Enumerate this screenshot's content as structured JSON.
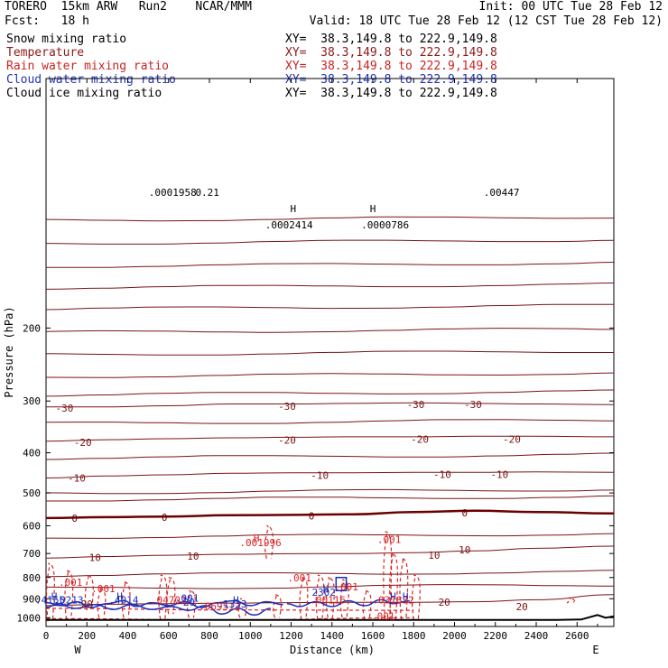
{
  "header": {
    "title": "TORERO  15km ARW   Run2    NCAR/MMM",
    "init": "Init: 00 UTC Tue 28 Feb 12",
    "fcst": "Fcst:   18 h",
    "valid": "Valid: 18 UTC Tue 28 Feb 12 (12 CST Tue 28 Feb 12)"
  },
  "legend": [
    {
      "name": "Snow mixing ratio",
      "color": "#000000",
      "xy": "XY=  38.3,149.8 to 222.9,149.8"
    },
    {
      "name": "Temperature",
      "color": "#8b1a1a",
      "xy": "XY=  38.3,149.8 to 222.9,149.8"
    },
    {
      "name": "Rain water mixing ratio",
      "color": "#cc2222",
      "xy": "XY=  38.3,149.8 to 222.9,149.8"
    },
    {
      "name": "Cloud water mixing ratio",
      "color": "#2233bb",
      "xy": "XY=  38.3,149.8 to 222.9,149.8"
    },
    {
      "name": "Cloud ice mixing ratio",
      "color": "#000000",
      "xy": "XY=  38.3,149.8 to 222.9,149.8"
    }
  ],
  "colors": {
    "temperature": "#7a1414",
    "freezing": "#6b0000",
    "rain": "#dd2222",
    "cloud_water": "#1a2dbb",
    "terrain": "#000000"
  },
  "chart_data": {
    "type": "contour",
    "xlabel": "Distance (km)",
    "ylabel": "Pressure (hPa)",
    "xlim": [
      0,
      2780
    ],
    "ylim": [
      1050,
      50
    ],
    "y_scale": "log",
    "x_ticks": [
      0,
      200,
      400,
      600,
      800,
      1000,
      1200,
      1400,
      1600,
      1800,
      2000,
      2200,
      2400,
      2600
    ],
    "y_ticks": [
      200,
      300,
      400,
      500,
      600,
      700,
      800,
      900,
      1000
    ],
    "left_end_label": "W",
    "right_end_label": "E",
    "temperature_contours": [
      {
        "label": "-30",
        "p": [
          310,
          310,
          308,
          305,
          305,
          304,
          303,
          304,
          305,
          306
        ]
      },
      {
        "label": "-20",
        "p": [
          375,
          372,
          370,
          368,
          367,
          366,
          366,
          365,
          365,
          366
        ]
      },
      {
        "label": "-10",
        "p": [
          460,
          455,
          452,
          448,
          447,
          447,
          446,
          446,
          445,
          446
        ]
      },
      {
        "label": "0",
        "p": [
          575,
          572,
          570,
          566,
          565,
          563,
          556,
          552,
          556,
          560
        ]
      },
      {
        "label": "10",
        "p": [
          718,
          712,
          707,
          703,
          701,
          700,
          697,
          690,
          680,
          672
        ]
      },
      {
        "label": "20",
        "p": [
          935,
          928,
          925,
          922,
          920,
          918,
          918,
          915,
          905,
          880
        ]
      }
    ],
    "temperature_contour_x": [
      0,
      300,
      600,
      900,
      1200,
      1500,
      1800,
      2100,
      2400,
      2780
    ],
    "labels": [
      {
        "text": "-30",
        "x": 90,
        "p": 318,
        "series": "temperature"
      },
      {
        "text": "-30",
        "x": 1180,
        "p": 315,
        "series": "temperature"
      },
      {
        "text": "-30",
        "x": 1810,
        "p": 312,
        "series": "temperature"
      },
      {
        "text": "-30",
        "x": 2090,
        "p": 312,
        "series": "temperature"
      },
      {
        "text": "-20",
        "x": 180,
        "p": 385,
        "series": "temperature"
      },
      {
        "text": "-20",
        "x": 1180,
        "p": 380,
        "series": "temperature"
      },
      {
        "text": "-20",
        "x": 1830,
        "p": 378,
        "series": "temperature"
      },
      {
        "text": "-20",
        "x": 2280,
        "p": 378,
        "series": "temperature"
      },
      {
        "text": "-10",
        "x": 150,
        "p": 470,
        "series": "temperature"
      },
      {
        "text": "-10",
        "x": 1340,
        "p": 462,
        "series": "temperature"
      },
      {
        "text": "-10",
        "x": 1940,
        "p": 460,
        "series": "temperature"
      },
      {
        "text": "-10",
        "x": 2220,
        "p": 460,
        "series": "temperature"
      },
      {
        "text": "0",
        "x": 140,
        "p": 587,
        "series": "freezing"
      },
      {
        "text": "0",
        "x": 580,
        "p": 584,
        "series": "freezing"
      },
      {
        "text": "0",
        "x": 1300,
        "p": 579,
        "series": "freezing"
      },
      {
        "text": "0",
        "x": 2050,
        "p": 570,
        "series": "freezing"
      },
      {
        "text": "10",
        "x": 240,
        "p": 730,
        "series": "temperature"
      },
      {
        "text": "10",
        "x": 720,
        "p": 725,
        "series": "temperature"
      },
      {
        "text": "10",
        "x": 1900,
        "p": 720,
        "series": "temperature"
      },
      {
        "text": "10",
        "x": 2050,
        "p": 700,
        "series": "temperature"
      },
      {
        "text": "20",
        "x": 200,
        "p": 944,
        "series": "temperature"
      },
      {
        "text": "20",
        "x": 1950,
        "p": 935,
        "series": "temperature"
      },
      {
        "text": "20",
        "x": 2330,
        "p": 960,
        "series": "temperature"
      },
      {
        "text": ".001",
        "x": 120,
        "p": 838,
        "series": "rain"
      },
      {
        "text": ".001",
        "x": 280,
        "p": 868,
        "series": "rain"
      },
      {
        "text": ".001",
        "x": 1240,
        "p": 818,
        "series": "rain"
      },
      {
        "text": ".001",
        "x": 1470,
        "p": 860,
        "series": "rain"
      },
      {
        "text": ".001",
        "x": 1680,
        "p": 660,
        "series": "rain"
      },
      {
        "text": ".001",
        "x": 1650,
        "p": 1010,
        "series": "rain"
      },
      {
        "text": "H",
        "x": 1030,
        "p": 655,
        "series": "rain"
      },
      {
        "text": ".001996",
        "x": 1050,
        "p": 672,
        "series": "rain"
      },
      {
        "text": ".069513",
        "x": 850,
        "p": 958,
        "series": "rain"
      },
      {
        "text": ".04702",
        "x": 600,
        "p": 925,
        "series": "rain"
      },
      {
        "text": ".00116",
        "x": 1380,
        "p": 925,
        "series": "rain"
      },
      {
        "text": ".031832",
        "x": 1700,
        "p": 925,
        "series": "rain"
      },
      {
        "text": "H",
        "x": 40,
        "p": 905,
        "series": "cloud"
      },
      {
        "text": ".4165",
        "x": 20,
        "p": 925,
        "series": "cloud"
      },
      {
        "text": ".0213",
        "x": 110,
        "p": 925,
        "series": "cloud"
      },
      {
        "text": "H",
        "x": 360,
        "p": 905,
        "series": "cloud"
      },
      {
        "text": ".4014",
        "x": 380,
        "p": 925,
        "series": "cloud"
      },
      {
        "text": ".001",
        "x": 690,
        "p": 915,
        "series": "cloud"
      },
      {
        "text": "20",
        "x": 700,
        "p": 935,
        "series": "cloud"
      },
      {
        "text": "H",
        "x": 930,
        "p": 925,
        "series": "cloud"
      },
      {
        "text": ".1333",
        "x": 910,
        "p": 944,
        "series": "cloud"
      },
      {
        "text": "H",
        "x": 1370,
        "p": 868,
        "series": "cloud"
      },
      {
        "text": "2302",
        "x": 1360,
        "p": 885,
        "series": "cloud"
      },
      {
        "text": "H",
        "x": 1700,
        "p": 905,
        "series": "cloud"
      },
      {
        "text": "H",
        "x": 1760,
        "p": 905,
        "series": "cloud"
      },
      {
        "text": "H",
        "x": 1210,
        "p": 105,
        "series": "ice"
      },
      {
        "text": ".0002414",
        "x": 1190,
        "p": 115,
        "series": "ice"
      },
      {
        "text": "H",
        "x": 1600,
        "p": 105,
        "series": "ice"
      },
      {
        "text": ".0000786",
        "x": 1660,
        "p": 115,
        "series": "ice"
      },
      {
        "text": ".0001958",
        "x": 620,
        "p": 96,
        "series": "snow"
      },
      {
        "text": "0.21",
        "x": 790,
        "p": 96,
        "series": "snow"
      },
      {
        "text": ".00447",
        "x": 2230,
        "p": 96,
        "series": "snow"
      }
    ]
  }
}
